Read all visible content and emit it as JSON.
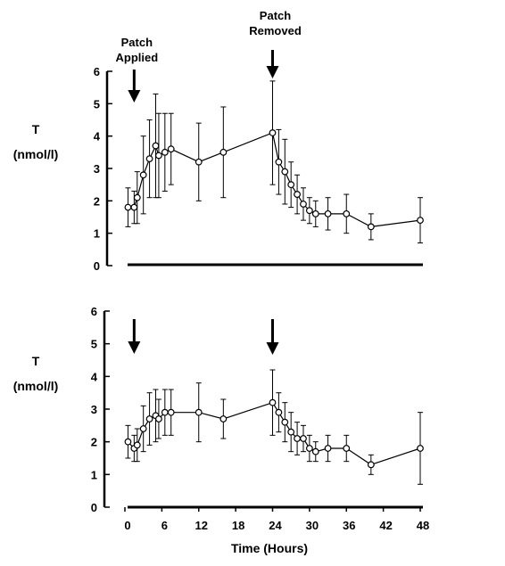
{
  "chart_data": [
    {
      "type": "line",
      "panel": "top",
      "ylabel_lines": [
        "T",
        "(nmol/l)"
      ],
      "xlabel": "",
      "ylim": [
        0,
        6
      ],
      "y_ticks": [
        0,
        1,
        2,
        3,
        4,
        5,
        6
      ],
      "xlim": [
        0,
        48
      ],
      "grid": false,
      "annotations": [
        {
          "name": "patch-applied",
          "lines": [
            "Patch",
            "Applied"
          ],
          "x": 1.5
        },
        {
          "name": "patch-removed",
          "lines": [
            "Patch",
            "Removed"
          ],
          "x": 24
        }
      ],
      "series": [
        {
          "marker": "open-circle",
          "x": [
            0.5,
            1.5,
            2,
            3,
            4,
            5,
            5.5,
            6.5,
            7.5,
            12,
            16,
            24,
            25,
            26,
            27,
            28,
            29,
            30,
            31,
            33,
            36,
            40,
            48
          ],
          "y": [
            1.8,
            1.8,
            2.1,
            2.8,
            3.3,
            3.7,
            3.4,
            3.5,
            3.6,
            3.2,
            3.5,
            4.1,
            3.2,
            2.9,
            2.5,
            2.2,
            1.9,
            1.7,
            1.6,
            1.6,
            1.6,
            1.2,
            1.4
          ],
          "err": [
            0.6,
            0.5,
            0.8,
            1.2,
            1.2,
            1.6,
            1.3,
            1.2,
            1.1,
            1.2,
            1.4,
            1.6,
            1.0,
            1.0,
            0.7,
            0.6,
            0.5,
            0.4,
            0.4,
            0.5,
            0.6,
            0.4,
            0.7
          ]
        }
      ]
    },
    {
      "type": "line",
      "panel": "bottom",
      "ylabel_lines": [
        "T",
        "(nmol/l)"
      ],
      "xlabel": "Time (Hours)",
      "ylim": [
        0,
        6
      ],
      "y_ticks": [
        0,
        1,
        2,
        3,
        4,
        5,
        6
      ],
      "xlim": [
        0,
        48
      ],
      "x_ticks": [
        0,
        6,
        12,
        18,
        24,
        30,
        36,
        42,
        48
      ],
      "grid": false,
      "annotations": [
        {
          "name": "patch-applied",
          "lines": [],
          "x": 1.5
        },
        {
          "name": "patch-removed",
          "lines": [],
          "x": 24
        }
      ],
      "series": [
        {
          "marker": "open-circle",
          "x": [
            0.5,
            1.5,
            2,
            3,
            4,
            5,
            5.5,
            6.5,
            7.5,
            12,
            16,
            24,
            25,
            26,
            27,
            28,
            29,
            30,
            31,
            33,
            36,
            40,
            48
          ],
          "y": [
            2.0,
            1.8,
            1.9,
            2.4,
            2.7,
            2.8,
            2.7,
            2.9,
            2.9,
            2.9,
            2.7,
            3.2,
            2.9,
            2.6,
            2.3,
            2.1,
            2.1,
            1.8,
            1.7,
            1.8,
            1.8,
            1.3,
            1.8
          ],
          "err": [
            0.5,
            0.4,
            0.5,
            0.7,
            0.8,
            0.8,
            0.6,
            0.7,
            0.7,
            0.9,
            0.6,
            1.0,
            0.6,
            0.6,
            0.6,
            0.5,
            0.4,
            0.4,
            0.3,
            0.4,
            0.4,
            0.3,
            1.1
          ]
        }
      ]
    }
  ]
}
